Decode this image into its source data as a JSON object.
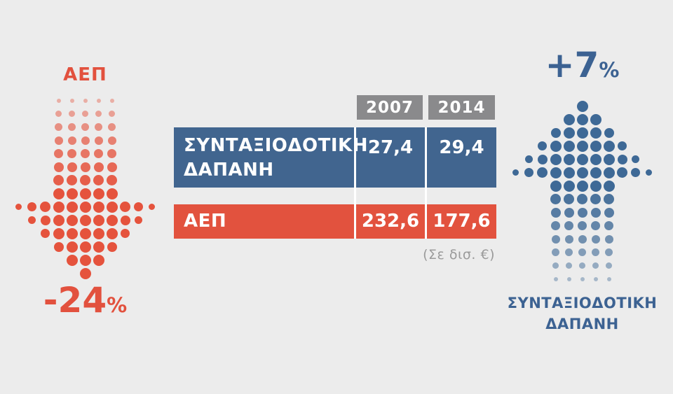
{
  "background": "#ececec",
  "chart_data": {
    "type": "table",
    "title": "",
    "columns": [
      "2007",
      "2014"
    ],
    "rows": [
      {
        "label": "ΣΥΝΤΑΞΙΟΔΟΤΙΚΗ ΔΑΠΑΝΗ",
        "values": [
          27.4,
          29.4
        ],
        "change_percent": "+7%",
        "color": "#41658f"
      },
      {
        "label": "ΑΕΠ",
        "values": [
          232.6,
          177.6
        ],
        "change_percent": "-24%",
        "color": "#e2523e"
      }
    ],
    "unit_note": "(Σε δισ. €)",
    "legend_position": "none",
    "grid": false
  },
  "left_arrow": {
    "title": "ΑΕΠ",
    "percent": "-24",
    "percent_sign": "%",
    "direction": "down",
    "color": "#e5533d",
    "rows": [
      {
        "s": [
          6,
          6,
          6,
          6,
          6
        ],
        "o": 0.4
      },
      {
        "s": [
          9,
          9,
          9,
          9,
          9
        ],
        "o": 0.5
      },
      {
        "s": [
          11,
          11,
          11,
          11,
          11
        ],
        "o": 0.6
      },
      {
        "s": [
          12,
          12,
          12,
          12,
          12
        ],
        "o": 0.7
      },
      {
        "s": [
          13,
          13,
          13,
          13,
          13
        ],
        "o": 0.78
      },
      {
        "s": [
          14,
          14,
          14,
          14,
          14
        ],
        "o": 0.86
      },
      {
        "s": [
          15,
          15,
          15,
          15,
          15
        ],
        "o": 0.93
      },
      {
        "s": [
          16,
          16,
          16,
          16,
          16
        ],
        "o": 1
      },
      {
        "s": [
          9,
          13,
          15,
          16,
          16,
          16,
          16,
          16,
          15,
          13,
          9
        ],
        "o": 1
      },
      {
        "s": [
          11,
          14,
          16,
          16,
          16,
          16,
          16,
          14,
          11
        ],
        "o": 1
      },
      {
        "s": [
          13,
          16,
          16,
          16,
          16,
          16,
          13
        ],
        "o": 1
      },
      {
        "s": [
          14,
          16,
          16,
          16,
          14
        ],
        "o": 1
      },
      {
        "s": [
          16,
          16,
          16
        ],
        "o": 1
      },
      {
        "s": [
          16
        ],
        "o": 1
      }
    ]
  },
  "right_arrow": {
    "title_line1": "ΣΥΝΤΑΞΙΟΔΟΤΙΚΗ",
    "title_line2": "ΔΑΠΑΝΗ",
    "percent": "+7",
    "percent_sign": "%",
    "direction": "up",
    "color": "#3e6996",
    "rows": [
      {
        "s": [
          16
        ],
        "o": 1
      },
      {
        "s": [
          16,
          16,
          16
        ],
        "o": 1
      },
      {
        "s": [
          14,
          16,
          16,
          16,
          14
        ],
        "o": 1
      },
      {
        "s": [
          13,
          16,
          16,
          16,
          16,
          16,
          13
        ],
        "o": 1
      },
      {
        "s": [
          11,
          14,
          16,
          16,
          16,
          16,
          16,
          14,
          11
        ],
        "o": 1
      },
      {
        "s": [
          9,
          13,
          15,
          16,
          16,
          16,
          16,
          16,
          15,
          13,
          9
        ],
        "o": 1
      },
      {
        "s": [
          16,
          16,
          16,
          16,
          16
        ],
        "o": 1
      },
      {
        "s": [
          15,
          15,
          15,
          15,
          15
        ],
        "o": 0.93
      },
      {
        "s": [
          14,
          14,
          14,
          14,
          14
        ],
        "o": 0.86
      },
      {
        "s": [
          13,
          13,
          13,
          13,
          13
        ],
        "o": 0.78
      },
      {
        "s": [
          12,
          12,
          12,
          12,
          12
        ],
        "o": 0.7
      },
      {
        "s": [
          11,
          11,
          11,
          11,
          11
        ],
        "o": 0.6
      },
      {
        "s": [
          9,
          9,
          9,
          9,
          9
        ],
        "o": 0.5
      },
      {
        "s": [
          6,
          6,
          6,
          6,
          6
        ],
        "o": 0.4
      }
    ]
  },
  "table": {
    "header_bg": "#8a8a8c",
    "col_headers": [
      "2007",
      "2014"
    ],
    "pension_row": {
      "label_line1": "ΣΥΝΤΑΞΙΟΔΟΤΙΚΗ",
      "label_line2": "ΔΑΠΑΝΗ",
      "values": [
        "27,4",
        "29,4"
      ]
    },
    "gdp_row": {
      "label": "ΑΕΠ",
      "values": [
        "232,6",
        "177,6"
      ]
    },
    "caption": "(Σε δισ. €)"
  }
}
